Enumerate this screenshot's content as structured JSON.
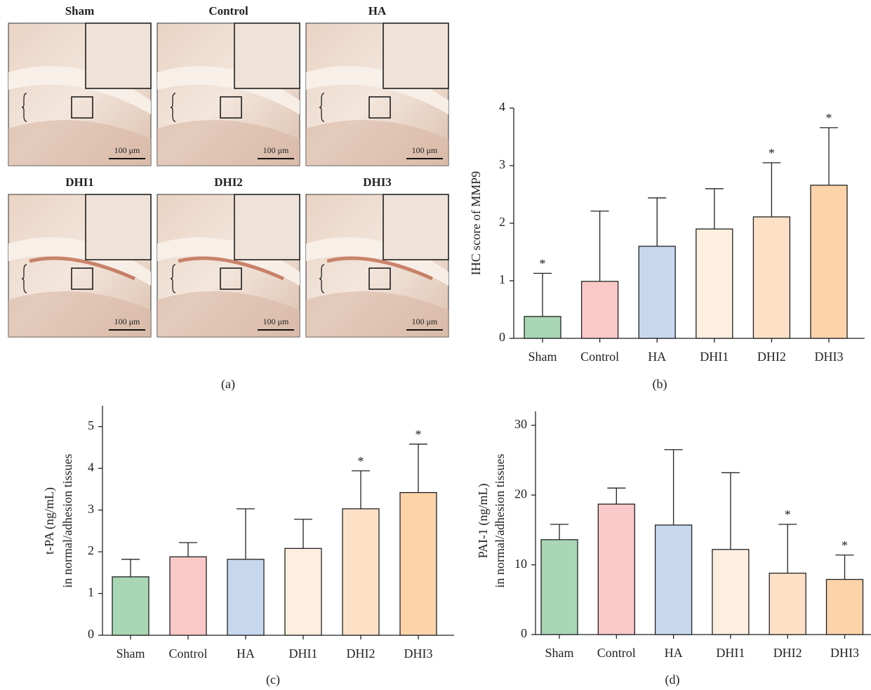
{
  "figure_a": {
    "panels": [
      "Sham",
      "Control",
      "HA",
      "DHI1",
      "DHI2",
      "DHI3"
    ],
    "scale_bar": "100 μm",
    "caption": "(a)"
  },
  "chart_data": [
    {
      "type": "bar",
      "ylabel": [
        "IHC score of  MMP9"
      ],
      "caption": "(b)",
      "categories": [
        "Sham",
        "Control",
        "HA",
        "DHI1",
        "DHI2",
        "DHI3"
      ],
      "values": [
        0.38,
        0.99,
        1.6,
        1.9,
        2.11,
        2.66
      ],
      "errors": [
        0.75,
        1.22,
        0.84,
        0.7,
        0.94,
        1.0
      ],
      "significance": [
        "*",
        null,
        null,
        null,
        "*",
        "*"
      ],
      "colors": [
        "#a9d6b5",
        "#f9c8c7",
        "#c7d7ee",
        "#fdeee0",
        "#fde1c6",
        "#fdd3aa"
      ],
      "ylim": [
        0,
        4
      ],
      "yticks": [
        0,
        1,
        2,
        3,
        4
      ],
      "grid": false
    },
    {
      "type": "bar",
      "ylabel": [
        "t-PA (ng/mL)",
        "in normal/adhesion tissues"
      ],
      "caption": "(c)",
      "categories": [
        "Sham",
        "Control",
        "HA",
        "DHI1",
        "DHI2",
        "DHI3"
      ],
      "values": [
        1.4,
        1.88,
        1.82,
        2.08,
        3.03,
        3.42
      ],
      "errors": [
        0.42,
        0.34,
        1.21,
        0.7,
        0.91,
        1.16
      ],
      "significance": [
        null,
        null,
        null,
        null,
        "*",
        "*"
      ],
      "colors": [
        "#a9d6b5",
        "#f9c8c7",
        "#c7d7ee",
        "#fdeee0",
        "#fde1c6",
        "#fdd3aa"
      ],
      "ylim": [
        0,
        5.5
      ],
      "yticks": [
        0,
        1,
        2,
        3,
        4,
        5
      ],
      "grid": false
    },
    {
      "type": "bar",
      "ylabel": [
        "PAI-1 (ng/mL)",
        "in normal/adhesion tissues"
      ],
      "caption": "(d)",
      "categories": [
        "Sham",
        "Control",
        "HA",
        "DHI1",
        "DHI2",
        "DHI3"
      ],
      "values": [
        13.6,
        18.7,
        15.7,
        12.2,
        8.8,
        7.9
      ],
      "errors": [
        2.2,
        2.3,
        10.8,
        11.0,
        7.0,
        3.5
      ],
      "significance": [
        null,
        null,
        null,
        null,
        "*",
        "*"
      ],
      "colors": [
        "#a9d6b5",
        "#f9c8c7",
        "#c7d7ee",
        "#fdeee0",
        "#fde1c6",
        "#fdd3aa"
      ],
      "ylim": [
        0,
        32
      ],
      "yticks": [
        0,
        10,
        20,
        30
      ],
      "grid": false
    }
  ]
}
